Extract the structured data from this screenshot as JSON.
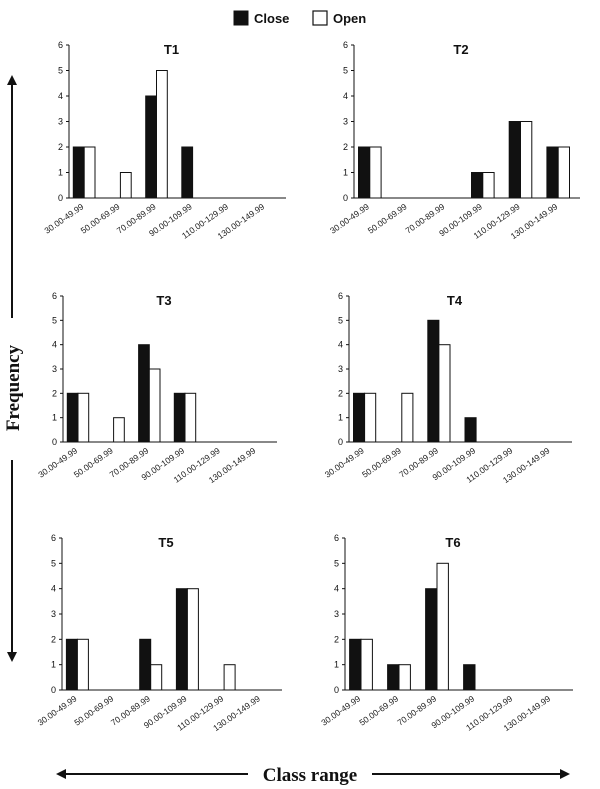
{
  "legend": {
    "close_label": "Close",
    "open_label": "Open",
    "close_color": "#111111",
    "open_color": "#ffffff"
  },
  "y_axis_label": "Frequency",
  "x_axis_label": "Class range",
  "chart_data": [
    {
      "type": "bar",
      "title": "T1",
      "categories": [
        "30.00-49.99",
        "50.00-69.99",
        "70.00-89.99",
        "90.00-109.99",
        "110.00-129.99",
        "130.00-149.99"
      ],
      "series": [
        {
          "name": "Close",
          "values": [
            2,
            0,
            4,
            2,
            0,
            0
          ]
        },
        {
          "name": "Open",
          "values": [
            2,
            1,
            5,
            0,
            0,
            0
          ]
        }
      ],
      "yticks": [
        "0",
        "1",
        "2",
        "3",
        "4",
        "5",
        "6"
      ],
      "ylim": [
        0,
        6
      ]
    },
    {
      "type": "bar",
      "title": "T2",
      "categories": [
        "30.00-49.99",
        "50.00-69.99",
        "70.00-89.99",
        "90.00-109.99",
        "110.00-129.99",
        "130.00-149.99"
      ],
      "series": [
        {
          "name": "Close",
          "values": [
            2,
            0,
            0,
            1,
            3,
            2
          ]
        },
        {
          "name": "Open",
          "values": [
            2,
            0,
            0,
            1,
            3,
            2
          ]
        }
      ],
      "yticks": [
        "0",
        "1",
        "2",
        "3",
        "4",
        "5",
        "6"
      ],
      "ylim": [
        0,
        6
      ]
    },
    {
      "type": "bar",
      "title": "T3",
      "categories": [
        "30.00-49.99",
        "50.00-69.99",
        "70.00-89.99",
        "90.00-109.99",
        "110.00-129.99",
        "130.00-149.99"
      ],
      "series": [
        {
          "name": "Close",
          "values": [
            2,
            0,
            4,
            2,
            0,
            0
          ]
        },
        {
          "name": "Open",
          "values": [
            2,
            1,
            3,
            2,
            0,
            0
          ]
        }
      ],
      "yticks": [
        "0",
        "1",
        "2",
        "3",
        "4",
        "5",
        "6"
      ],
      "ylim": [
        0,
        6
      ]
    },
    {
      "type": "bar",
      "title": "T4",
      "categories": [
        "30.00-49.99",
        "50.00-69.99",
        "70.00-89.99",
        "90.00-109.99",
        "110.00-129.99",
        "130.00-149.99"
      ],
      "series": [
        {
          "name": "Close",
          "values": [
            2,
            0,
            5,
            1,
            0,
            0
          ]
        },
        {
          "name": "Open",
          "values": [
            2,
            2,
            4,
            0,
            0,
            0
          ]
        }
      ],
      "yticks": [
        "0",
        "1",
        "2",
        "3",
        "4",
        "5",
        "6"
      ],
      "ylim": [
        0,
        6
      ]
    },
    {
      "type": "bar",
      "title": "T5",
      "categories": [
        "30.00-49.99",
        "50.00-69.99",
        "70.00-89.99",
        "90.00-109.99",
        "110.00-129.99",
        "130.00-149.99"
      ],
      "series": [
        {
          "name": "Close",
          "values": [
            2,
            0,
            2,
            4,
            0,
            0
          ]
        },
        {
          "name": "Open",
          "values": [
            2,
            0,
            1,
            4,
            1,
            0
          ]
        }
      ],
      "yticks": [
        "0",
        "1",
        "2",
        "3",
        "4",
        "5",
        "6"
      ],
      "ylim": [
        0,
        6
      ]
    },
    {
      "type": "bar",
      "title": "T6",
      "categories": [
        "30.00-49.99",
        "50.00-69.99",
        "70.00-89.99",
        "90.00-109.99",
        "110.00-129.99",
        "130.00-149.99"
      ],
      "series": [
        {
          "name": "Close",
          "values": [
            2,
            1,
            4,
            1,
            0,
            0
          ]
        },
        {
          "name": "Open",
          "values": [
            2,
            1,
            5,
            0,
            0,
            0
          ]
        }
      ],
      "yticks": [
        "0",
        "1",
        "2",
        "3",
        "4",
        "5",
        "6"
      ],
      "ylim": [
        0,
        6
      ]
    }
  ]
}
